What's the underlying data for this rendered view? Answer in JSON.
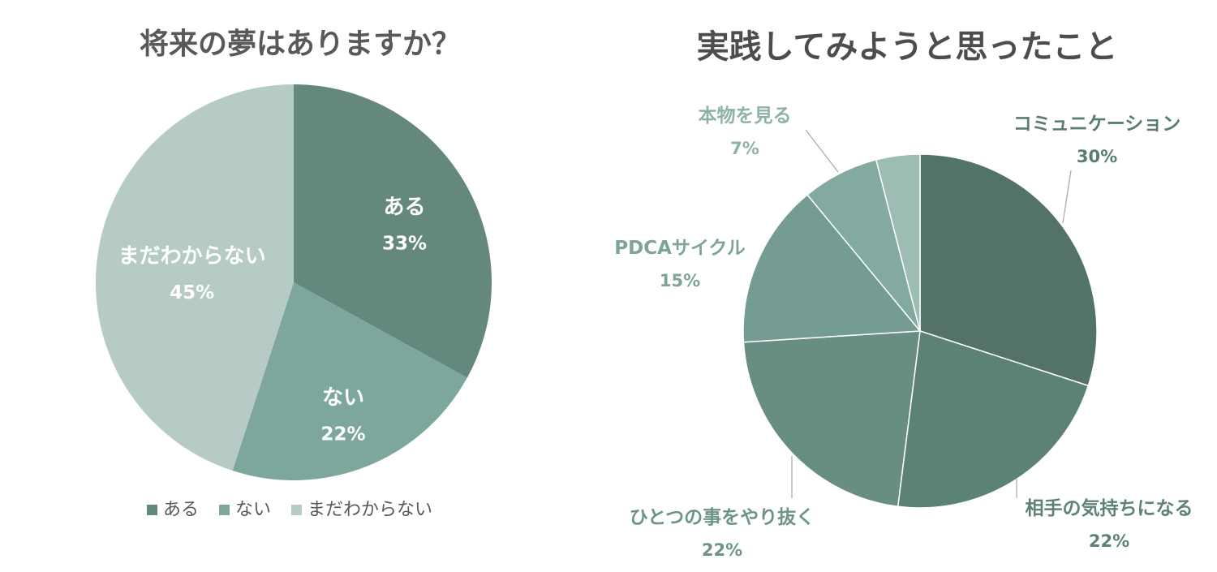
{
  "chart_data": [
    {
      "type": "pie",
      "title": "将来の夢はありますか？",
      "categories": [
        "ある",
        "ない",
        "まだわからない"
      ],
      "values": [
        33,
        22,
        45
      ],
      "value_labels": [
        "33%",
        "22%",
        "45%"
      ],
      "colors": [
        "#64887d",
        "#7da79c",
        "#b6cbc5"
      ],
      "legend": {
        "position": "bottom",
        "entries": [
          "ある",
          "ない",
          "まだわからない"
        ]
      }
    },
    {
      "type": "pie",
      "title": "実践してみようと思ったこと",
      "categories": [
        "コミュニケーション",
        "相手の気持ちになる",
        "ひとつの事をやり抜く",
        "PDCAサイクル",
        "本物を見る",
        ""
      ],
      "values": [
        30,
        22,
        22,
        15,
        7,
        4
      ],
      "value_labels": [
        "30%",
        "22%",
        "22%",
        "15%",
        "7%",
        ""
      ],
      "colors": [
        "#53736a",
        "#5c8177",
        "#688e84",
        "#759c93",
        "#82aaa0",
        "#9dbcb4"
      ],
      "label_colors": [
        "#5a7d72",
        "#5e8278",
        "#6e9489",
        "#7ea49a",
        "#8db3a9",
        ""
      ]
    }
  ]
}
